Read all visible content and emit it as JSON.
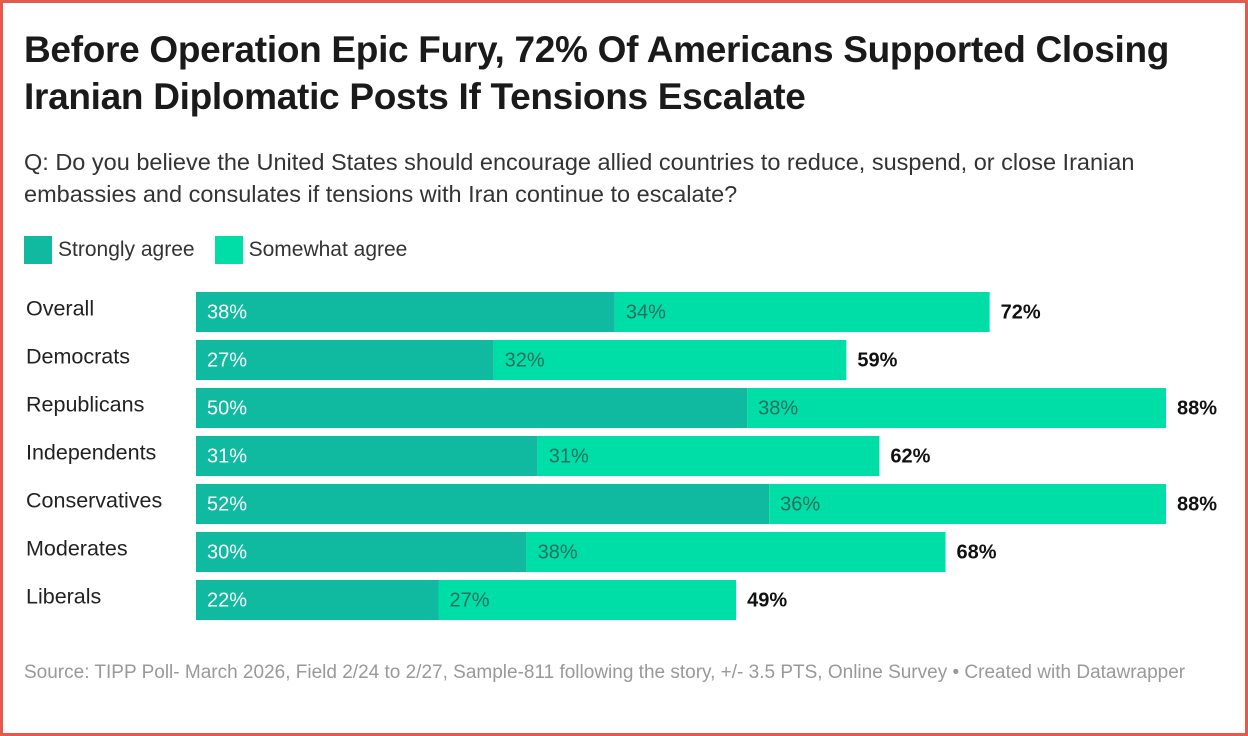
{
  "title": "Before Operation Epic Fury, 72% Of Americans Supported Closing Iranian Diplomatic Posts If Tensions Escalate",
  "subtitle": "Q: Do you believe the United States should encourage allied countries to reduce, suspend, or close Iranian embassies and consulates if tensions with Iran continue to escalate?",
  "source": "Source: TIPP Poll- March 2026, Field 2/24 to 2/27, Sample-811 following the story, +/- 3.5 PTS, Online Survey • Created with Datawrapper",
  "colors": {
    "strongly": "#0fbaa0",
    "somewhat": "#00dea8",
    "frame": "#e45a4f"
  },
  "chart_data": {
    "type": "bar",
    "orientation": "horizontal",
    "stacked": true,
    "title": "Before Operation Epic Fury, 72% Of Americans Supported Closing Iranian Diplomatic Posts If Tensions Escalate",
    "categories": [
      "Overall",
      "Democrats",
      "Republicans",
      "Independents",
      "Conservatives",
      "Moderates",
      "Liberals"
    ],
    "series": [
      {
        "name": "Strongly agree",
        "values": [
          38,
          27,
          50,
          31,
          52,
          30,
          22
        ]
      },
      {
        "name": "Somewhat agree",
        "values": [
          34,
          32,
          38,
          31,
          36,
          38,
          27
        ]
      }
    ],
    "totals": [
      72,
      59,
      88,
      62,
      88,
      68,
      49
    ],
    "value_suffix": "%",
    "xlim": [
      0,
      88
    ],
    "legend_position": "top-left"
  }
}
